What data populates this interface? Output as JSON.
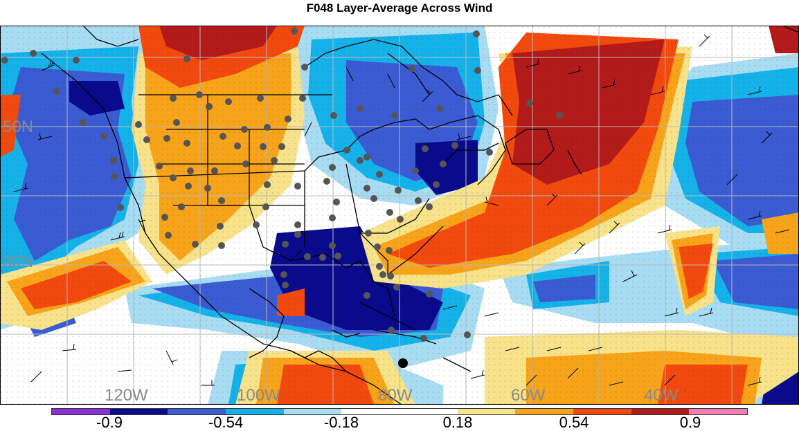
{
  "title": "F048 Layer-Average Across Wind",
  "lat_labels": [
    "50N",
    "30N"
  ],
  "lon_labels": [
    "120W",
    "100W",
    "80W",
    "60W",
    "40W"
  ],
  "colorbar": {
    "colors": [
      "#8b2fd6",
      "#0a0a8c",
      "#3a5bd1",
      "#15b2ea",
      "#a8dcf2",
      "#ffffff",
      "#ffffff",
      "#f8e28a",
      "#f7a41a",
      "#f24a0e",
      "#b31a1a",
      "#f27fb3"
    ],
    "labels": [
      "-0.9",
      "-0.54",
      "-0.18",
      "0.18",
      "0.54",
      "0.9"
    ]
  }
}
